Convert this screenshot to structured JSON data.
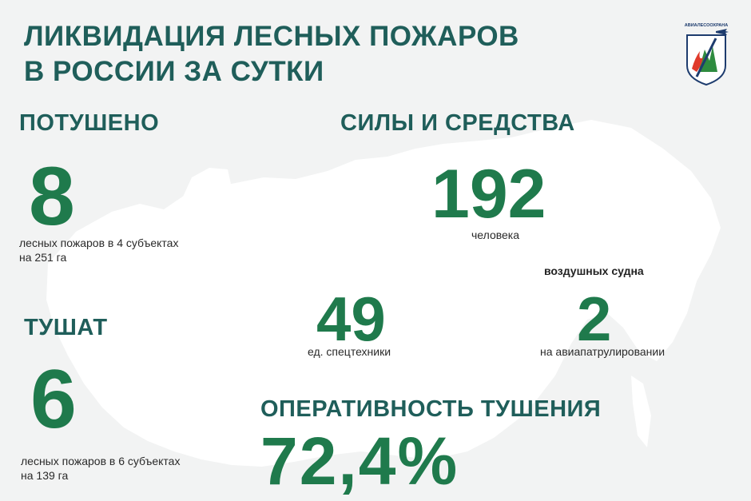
{
  "header": {
    "title_line1": "ЛИКВИДАЦИЯ ЛЕСНЫХ ПОЖАРОВ",
    "title_line2": "В РОССИИ ЗА СУТКИ",
    "logo_text": "АВИАЛЕСООХРАНА"
  },
  "extinguished": {
    "heading": "ПОТУШЕНО",
    "count": "8",
    "caption_line1": "лесных пожаров в 4 субъектах",
    "caption_line2": "на 251 га"
  },
  "being_extinguished": {
    "heading": "ТУШАТ",
    "count": "6",
    "caption_line1": "лесных пожаров в 6 субъектах",
    "caption_line2": "на 139 га"
  },
  "forces": {
    "heading": "СИЛЫ И СРЕДСТВА",
    "people_count": "192",
    "people_label": "человека",
    "equipment_count": "49",
    "equipment_label": "ед. спецтехники",
    "aircraft_label_top": "воздушных судна",
    "aircraft_count": "2",
    "aircraft_label_bottom": "на авиапатрулировании"
  },
  "efficiency": {
    "heading": "ОПЕРАТИВНОСТЬ ТУШЕНИЯ",
    "value": "72,4%"
  },
  "colors": {
    "background": "#f2f3f3",
    "map": "#ffffff",
    "heading_text": "#1f5e5a",
    "number_green": "#1f7a4c",
    "logo_red": "#e03a2b",
    "logo_green": "#2e8b3f",
    "logo_navy": "#1e3c6e"
  }
}
